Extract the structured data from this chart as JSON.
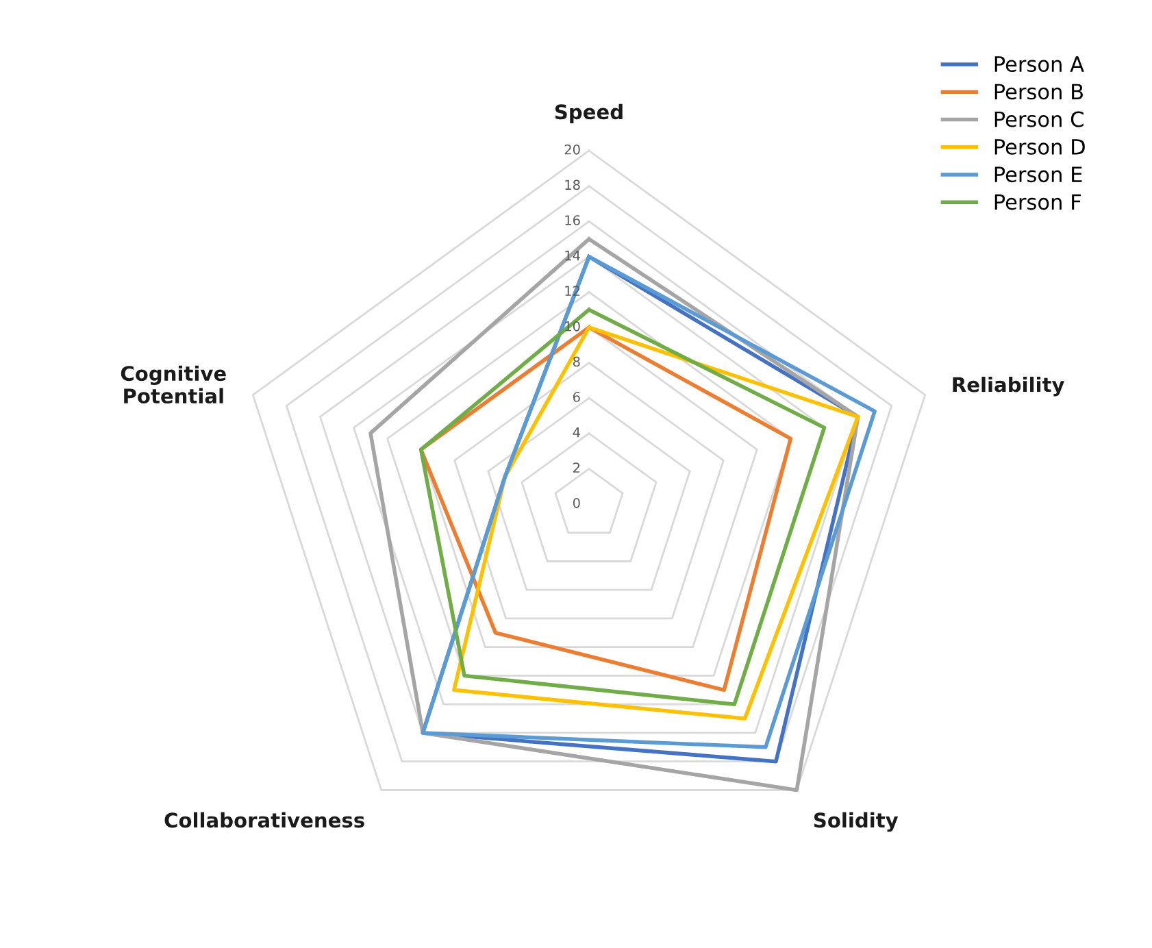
{
  "chart_data": {
    "type": "radar",
    "categories": [
      "Speed",
      "Reliability",
      "Solidity",
      "Collaborativeness",
      "Cognitive\nPotential"
    ],
    "ylim": [
      0,
      20
    ],
    "yticks": [
      0,
      2,
      4,
      6,
      8,
      10,
      12,
      14,
      16,
      18,
      20
    ],
    "grid": true,
    "legend": "top right",
    "series": [
      {
        "name": "Person A",
        "color": "#4472c4",
        "values": [
          14,
          16,
          18,
          16,
          5
        ]
      },
      {
        "name": "Person B",
        "color": "#ed7d31",
        "values": [
          10,
          12,
          13,
          9,
          10
        ]
      },
      {
        "name": "Person C",
        "color": "#a5a5a5",
        "values": [
          15,
          16,
          20,
          16,
          13
        ]
      },
      {
        "name": "Person D",
        "color": "#ffc000",
        "values": [
          10,
          16,
          15,
          13,
          5
        ]
      },
      {
        "name": "Person E",
        "color": "#5b9bd5",
        "values": [
          14,
          17,
          17,
          16,
          5
        ]
      },
      {
        "name": "Person F",
        "color": "#70ad47",
        "values": [
          11,
          14,
          14,
          12,
          10
        ]
      }
    ]
  }
}
